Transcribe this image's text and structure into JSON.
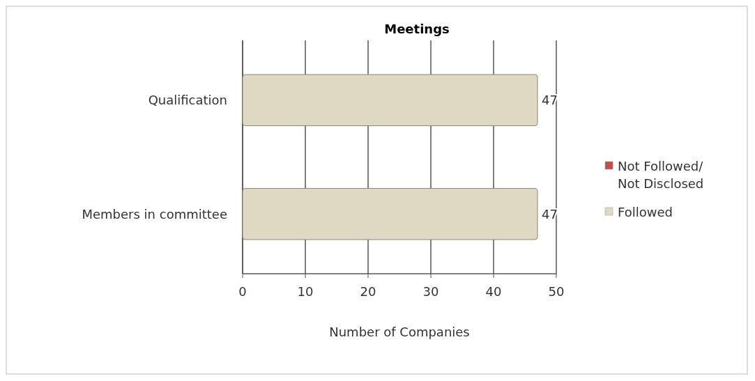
{
  "chart_data": {
    "type": "bar",
    "orientation": "horizontal",
    "title": "Meetings",
    "xlabel": "Number of Companies",
    "categories": [
      "Qualification",
      "Members in committee"
    ],
    "series": [
      {
        "name": "Not Followed/ Not Disclosed",
        "color": "#c0504d",
        "values": [
          0,
          0
        ]
      },
      {
        "name": "Followed",
        "color": "#ddd9c3",
        "values": [
          47,
          47
        ],
        "value_labels": [
          "47",
          "47"
        ]
      }
    ],
    "xlim": [
      0,
      50
    ],
    "xticks": [
      0,
      10,
      20,
      30,
      40,
      50
    ],
    "grid": "x",
    "legend": "right"
  }
}
